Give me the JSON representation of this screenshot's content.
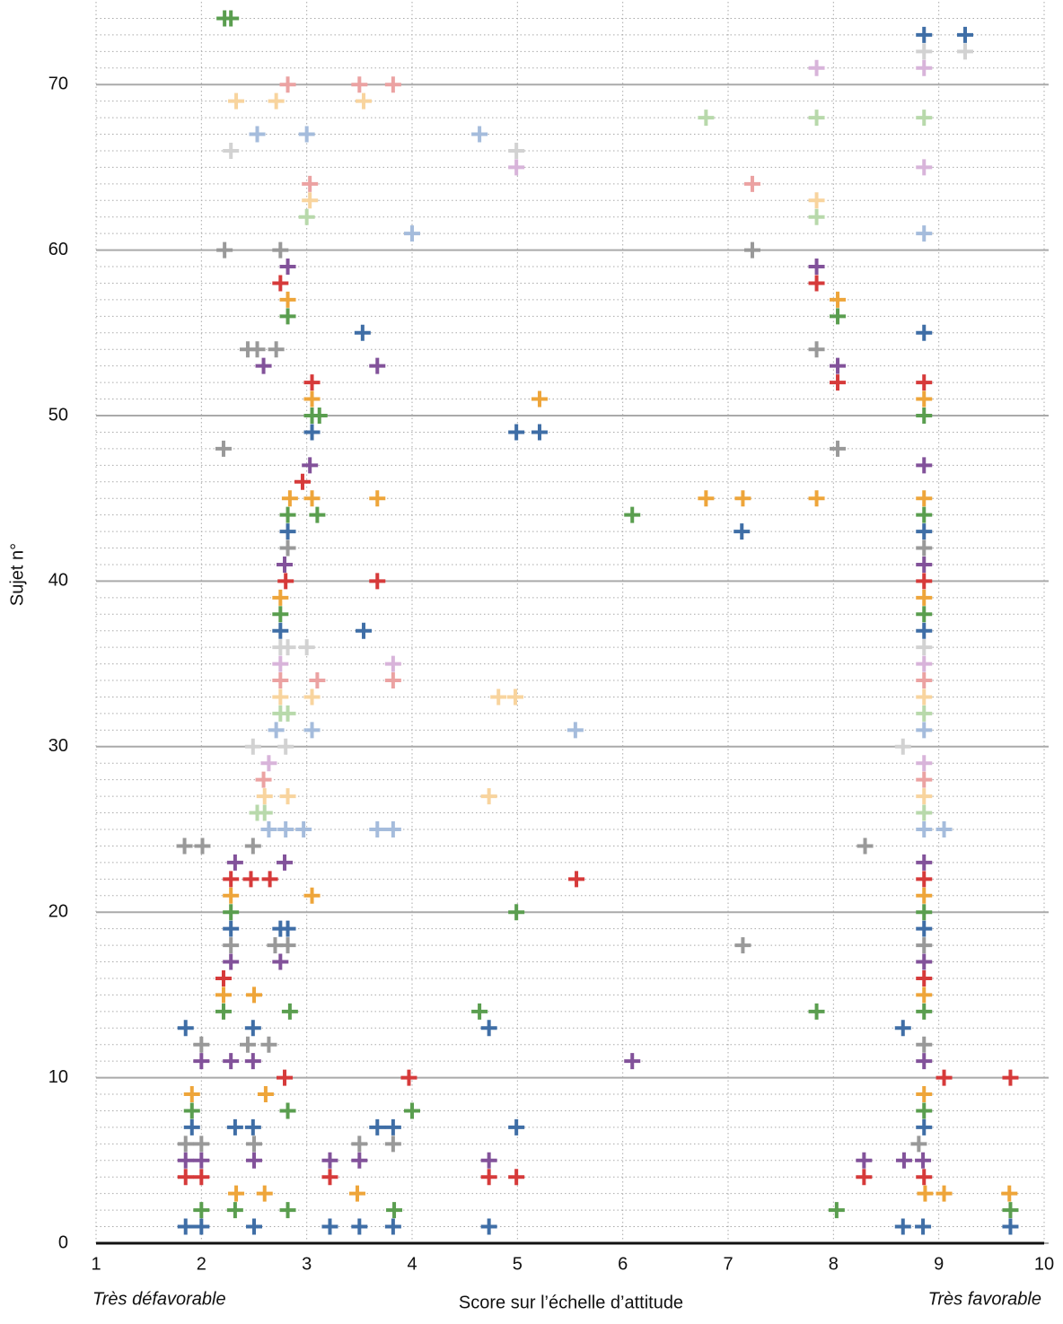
{
  "chart_data": {
    "type": "scatter",
    "xlabel": "Score sur l’échelle d’attitude",
    "ylabel": "Sujet n°",
    "annotations": [
      "Très défavorable",
      "Très favorable"
    ],
    "xlim": [
      1,
      10
    ],
    "ylim": [
      0,
      75
    ],
    "xticks": [
      1,
      2,
      3,
      4,
      5,
      6,
      7,
      8,
      9,
      10
    ],
    "yticks": [
      0,
      10,
      20,
      30,
      40,
      50,
      60,
      70
    ],
    "grid": true,
    "marker": "plus",
    "series": [
      {
        "color": "#3f6ea6",
        "x": [
          1.85,
          2.0,
          2.5,
          3.22,
          3.5,
          3.82,
          4.73,
          8.66,
          8.85,
          9.68,
          1.91,
          2.32,
          2.49,
          3.67,
          3.82,
          4.99,
          8.86,
          1.85,
          2.49,
          4.73,
          8.66,
          2.28,
          2.75,
          2.82,
          8.86,
          2.75,
          3.54,
          8.86,
          2.82,
          7.13,
          8.86,
          3.05,
          4.99,
          5.21,
          3.53,
          8.86,
          8.86,
          9.25
        ],
        "y": [
          1,
          1,
          1,
          1,
          1,
          1,
          1,
          1,
          1,
          1,
          7,
          7,
          7,
          7,
          7,
          7,
          7,
          13,
          13,
          13,
          13,
          19,
          19,
          19,
          19,
          37,
          37,
          37,
          43,
          43,
          43,
          49,
          49,
          49,
          55,
          55,
          73,
          73
        ]
      },
      {
        "color": "#5a9e4f",
        "x": [
          2.0,
          2.32,
          2.82,
          3.83,
          8.03,
          9.68,
          1.91,
          2.82,
          4.0,
          8.86,
          2.21,
          2.84,
          4.64,
          7.84,
          8.86,
          2.28,
          4.99,
          8.86,
          2.75,
          8.86,
          2.82,
          3.1,
          6.09,
          8.86,
          3.05,
          3.12,
          8.86,
          2.82,
          8.04,
          2.22,
          2.28
        ],
        "y": [
          2,
          2,
          2,
          2,
          2,
          2,
          8,
          8,
          8,
          8,
          14,
          14,
          14,
          14,
          14,
          20,
          20,
          20,
          38,
          38,
          44,
          44,
          44,
          44,
          50,
          50,
          50,
          56,
          56,
          74,
          74
        ]
      },
      {
        "color": "#eea53a",
        "x": [
          2.33,
          2.6,
          3.48,
          8.87,
          9.05,
          9.67,
          1.91,
          2.61,
          8.86,
          2.21,
          2.5,
          8.86,
          2.28,
          3.05,
          8.86,
          2.75,
          8.86,
          2.84,
          3.05,
          3.67,
          6.79,
          7.14,
          7.84,
          8.86,
          3.05,
          5.21,
          8.86,
          2.82,
          8.04
        ],
        "y": [
          3,
          3,
          3,
          3,
          3,
          3,
          9,
          9,
          9,
          15,
          15,
          15,
          21,
          21,
          21,
          39,
          39,
          45,
          45,
          45,
          45,
          45,
          45,
          45,
          51,
          51,
          51,
          57,
          57
        ]
      },
      {
        "color": "#d63a3a",
        "x": [
          1.85,
          2.0,
          3.22,
          4.73,
          4.99,
          8.29,
          8.86,
          2.79,
          3.97,
          9.05,
          9.68,
          2.21,
          8.86,
          2.28,
          2.47,
          2.65,
          5.56,
          8.86,
          2.8,
          3.67,
          8.86,
          2.96,
          3.05,
          8.04,
          8.86,
          2.75,
          7.84
        ],
        "y": [
          4,
          4,
          4,
          4,
          4,
          4,
          4,
          10,
          10,
          10,
          10,
          16,
          16,
          22,
          22,
          22,
          22,
          22,
          40,
          40,
          40,
          46,
          52,
          52,
          52,
          58,
          58
        ]
      },
      {
        "color": "#82529a",
        "x": [
          1.85,
          2.0,
          2.5,
          3.22,
          3.5,
          4.73,
          8.29,
          8.67,
          8.85,
          2.0,
          2.28,
          2.49,
          6.09,
          8.86,
          2.28,
          2.75,
          8.86,
          2.32,
          2.79,
          8.86,
          2.79,
          8.86,
          3.03,
          8.86,
          2.59,
          3.67,
          8.04,
          2.82,
          7.84
        ],
        "y": [
          5,
          5,
          5,
          5,
          5,
          5,
          5,
          5,
          5,
          11,
          11,
          11,
          11,
          11,
          17,
          17,
          17,
          23,
          23,
          23,
          41,
          41,
          47,
          47,
          53,
          53,
          53,
          59,
          59
        ]
      },
      {
        "color": "#999999",
        "x": [
          1.85,
          2.0,
          2.5,
          3.5,
          3.82,
          8.81,
          2.0,
          2.44,
          2.64,
          8.86,
          2.28,
          2.7,
          2.82,
          7.14,
          8.86,
          1.84,
          2.01,
          2.49,
          8.3,
          2.82,
          8.86,
          2.21,
          8.04,
          2.44,
          2.53,
          2.71,
          7.84,
          2.22,
          2.75,
          7.23
        ],
        "y": [
          6,
          6,
          6,
          6,
          6,
          6,
          12,
          12,
          12,
          12,
          18,
          18,
          18,
          18,
          18,
          24,
          24,
          24,
          24,
          42,
          42,
          48,
          48,
          54,
          54,
          54,
          54,
          60,
          60,
          60
        ]
      },
      {
        "color": "#a5bcdc",
        "x": [
          2.64,
          2.8,
          2.97,
          3.67,
          3.82,
          8.86,
          9.05,
          2.71,
          3.05,
          5.55,
          8.86,
          4.0,
          8.86,
          2.53,
          3.0,
          4.64
        ],
        "y": [
          25,
          25,
          25,
          25,
          25,
          25,
          25,
          31,
          31,
          31,
          31,
          61,
          61,
          67,
          67,
          67
        ]
      },
      {
        "color": "#b8d9ab",
        "x": [
          2.53,
          2.6,
          8.86,
          2.75,
          2.82,
          8.86,
          3.0,
          7.84,
          6.79,
          7.84,
          8.86
        ],
        "y": [
          26,
          26,
          26,
          32,
          32,
          32,
          62,
          62,
          68,
          68,
          68
        ]
      },
      {
        "color": "#f8d49e",
        "x": [
          2.6,
          2.82,
          4.73,
          8.86,
          2.75,
          3.05,
          4.82,
          4.98,
          8.86,
          3.03,
          7.84,
          2.33,
          2.71,
          3.54
        ],
        "y": [
          27,
          27,
          27,
          27,
          33,
          33,
          33,
          33,
          33,
          63,
          63,
          69,
          69,
          69
        ]
      },
      {
        "color": "#eba2a2",
        "x": [
          2.59,
          8.86,
          2.75,
          3.1,
          3.82,
          8.86,
          3.03,
          7.23,
          2.82,
          3.5,
          3.82
        ],
        "y": [
          28,
          28,
          34,
          34,
          34,
          34,
          64,
          64,
          70,
          70,
          70
        ]
      },
      {
        "color": "#d8b4da",
        "x": [
          2.64,
          8.86,
          2.75,
          3.82,
          8.86,
          4.99,
          8.86,
          7.84,
          8.86
        ],
        "y": [
          29,
          29,
          35,
          35,
          35,
          65,
          65,
          71,
          71
        ]
      },
      {
        "color": "#d2d2d2",
        "x": [
          2.49,
          2.8,
          8.66,
          2.75,
          2.82,
          3.0,
          8.86,
          2.28,
          4.99,
          8.86,
          9.25
        ],
        "y": [
          30,
          30,
          30,
          36,
          36,
          36,
          36,
          66,
          66,
          72,
          72
        ]
      }
    ]
  }
}
